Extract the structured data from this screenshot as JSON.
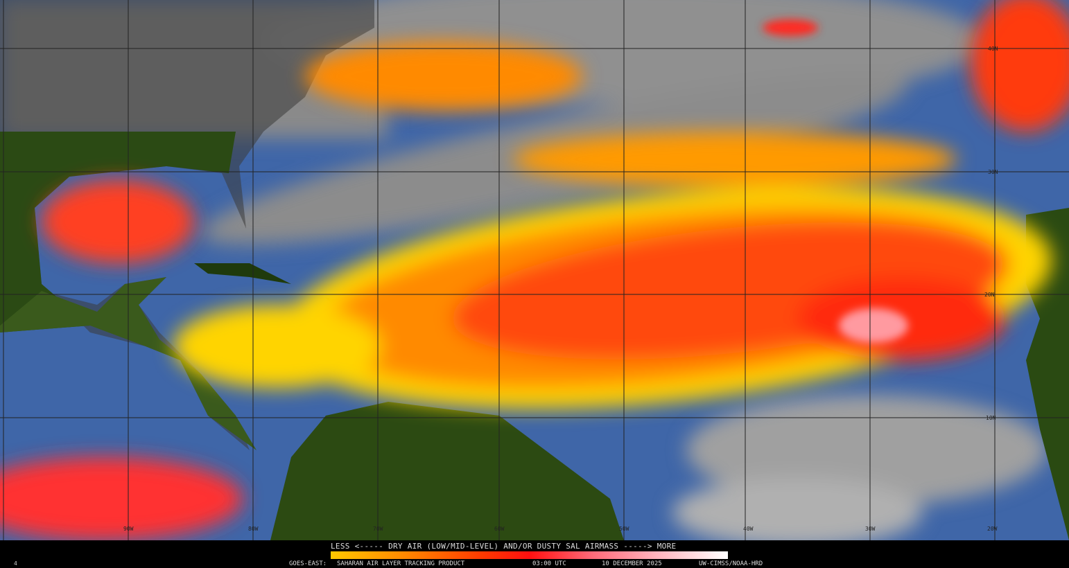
{
  "product": {
    "legend_title": "LESS <----- DRY AIR (LOW/MID-LEVEL) AND/OR DUSTY SAL AIRMASS -----> MORE",
    "satellite": "GOES-EAST:",
    "product_name": "SAHARAN AIR LAYER TRACKING PRODUCT",
    "time": "03:00 UTC",
    "date": "10 DECEMBER 2025",
    "credit": "UW-CIMSS/NOAA-HRD",
    "frame_number": "4"
  },
  "colorbar": {
    "low_label": "LESS",
    "high_label": "MORE",
    "colors": [
      "#ffc800",
      "#ff8a00",
      "#ff3a00",
      "#ff1010",
      "#ff6b7a",
      "#ffb3bd",
      "#ffffff"
    ]
  },
  "grid": {
    "longitudes": [
      "90W",
      "80W",
      "70W",
      "60W",
      "50W",
      "40W",
      "30W",
      "20W"
    ],
    "latitudes": [
      "40N",
      "30N",
      "20N",
      "10N"
    ]
  },
  "colors": {
    "ocean": "#3f66a8",
    "land": "#2a4a12",
    "cloud": "#9a9a9a",
    "dust_low": "#ffd400",
    "dust_mid": "#ff7a00",
    "dust_high": "#ff2a10"
  }
}
